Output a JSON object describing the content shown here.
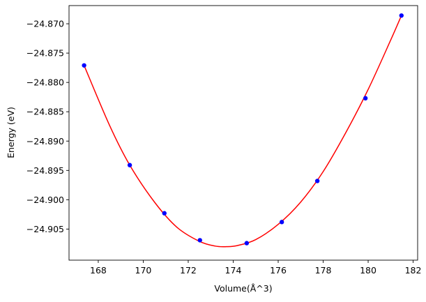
{
  "chart_data": {
    "type": "scatter",
    "title": "",
    "xlabel": "Volume(Å^3)",
    "ylabel": "Energy (eV)",
    "xlim": [
      166.7,
      182.2
    ],
    "ylim": [
      -24.9103,
      -24.8669
    ],
    "xticks": [
      168,
      170,
      172,
      174,
      176,
      178,
      180,
      182
    ],
    "xtick_labels": [
      "168",
      "170",
      "172",
      "174",
      "176",
      "178",
      "180",
      "182"
    ],
    "yticks": [
      -24.905,
      -24.9,
      -24.895,
      -24.89,
      -24.885,
      -24.88,
      -24.875,
      -24.87
    ],
    "ytick_labels": [
      "−24.905",
      "−24.900",
      "−24.895",
      "−24.890",
      "−24.885",
      "−24.880",
      "−24.875",
      "−24.870"
    ],
    "grid": false,
    "legend": "none",
    "series": [
      {
        "kind": "points",
        "color": "#0000ff",
        "x": [
          167.37,
          169.4,
          170.94,
          172.52,
          174.6,
          176.16,
          177.74,
          179.88,
          181.48
        ],
        "y": [
          -24.8771,
          -24.8941,
          -24.9023,
          -24.9069,
          -24.9074,
          -24.9038,
          -24.8968,
          -24.8827,
          -24.8686
        ]
      },
      {
        "kind": "fit-curve",
        "color": "#ff0000",
        "x": [
          167.37,
          168.5,
          169.4,
          170.5,
          171.5,
          172.5,
          173.2,
          173.7,
          174.2,
          175.0,
          176.0,
          177.0,
          178.0,
          179.0,
          180.0,
          181.0,
          181.48
        ],
        "y": [
          -24.8771,
          -24.8873,
          -24.8941,
          -24.9004,
          -24.9047,
          -24.9071,
          -24.9079,
          -24.908,
          -24.9078,
          -24.9068,
          -24.9042,
          -24.9004,
          -24.8952,
          -24.8886,
          -24.8812,
          -24.8728,
          -24.8686
        ]
      }
    ]
  }
}
